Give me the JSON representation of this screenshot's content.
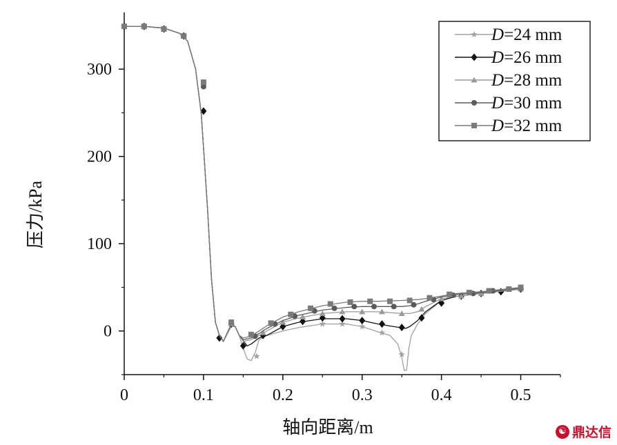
{
  "chart_data": {
    "type": "line",
    "xlabel": "轴向距离/m",
    "ylabel": "压力/kPa",
    "xlim": [
      0,
      0.55
    ],
    "ylim": [
      -50,
      365
    ],
    "x_ticks": [
      "0",
      "0.1",
      "0.2",
      "0.3",
      "0.4",
      "0.5"
    ],
    "x_tick_values": [
      0,
      0.1,
      0.2,
      0.3,
      0.4,
      0.5
    ],
    "y_ticks": [
      "0",
      "100",
      "200",
      "300"
    ],
    "y_tick_values": [
      0,
      100,
      200,
      300
    ],
    "legend_position": "top-right",
    "grid": false,
    "series": [
      {
        "name": "D=24 mm",
        "marker": "star",
        "color": "#a0a0a0",
        "curve": [
          [
            0,
            349
          ],
          [
            0.025,
            349
          ],
          [
            0.05,
            347
          ],
          [
            0.07,
            341
          ],
          [
            0.08,
            332
          ],
          [
            0.09,
            300
          ],
          [
            0.097,
            250
          ],
          [
            0.1,
            210
          ],
          [
            0.105,
            140
          ],
          [
            0.11,
            60
          ],
          [
            0.115,
            10
          ],
          [
            0.12,
            -5
          ],
          [
            0.125,
            -12
          ],
          [
            0.135,
            5
          ],
          [
            0.14,
            5
          ],
          [
            0.145,
            -5
          ],
          [
            0.15,
            -20
          ],
          [
            0.155,
            -32
          ],
          [
            0.16,
            -34
          ],
          [
            0.165,
            -25
          ],
          [
            0.17,
            -10
          ],
          [
            0.18,
            -5
          ],
          [
            0.2,
            0
          ],
          [
            0.22,
            4
          ],
          [
            0.25,
            8
          ],
          [
            0.28,
            8
          ],
          [
            0.3,
            5
          ],
          [
            0.32,
            -1
          ],
          [
            0.335,
            -5
          ],
          [
            0.345,
            -15
          ],
          [
            0.35,
            -30
          ],
          [
            0.353,
            -45
          ],
          [
            0.356,
            -45
          ],
          [
            0.359,
            -20
          ],
          [
            0.362,
            -5
          ],
          [
            0.37,
            8
          ],
          [
            0.38,
            20
          ],
          [
            0.4,
            35
          ],
          [
            0.42,
            40
          ],
          [
            0.45,
            43
          ],
          [
            0.5,
            48
          ]
        ],
        "points": [
          [
            0,
            349
          ],
          [
            0.025,
            349
          ],
          [
            0.05,
            346
          ],
          [
            0.075,
            338
          ],
          [
            0.1,
            283
          ],
          [
            0.167,
            -29
          ],
          [
            0.25,
            8
          ],
          [
            0.275,
            8
          ],
          [
            0.3,
            5
          ],
          [
            0.325,
            -2
          ],
          [
            0.35,
            -27
          ],
          [
            0.4,
            35
          ],
          [
            0.45,
            43
          ],
          [
            0.5,
            48
          ]
        ]
      },
      {
        "name": "D=26 mm",
        "marker": "diamond",
        "color": "#111111",
        "curve": [
          [
            0,
            349
          ],
          [
            0.025,
            349
          ],
          [
            0.05,
            347
          ],
          [
            0.07,
            341
          ],
          [
            0.08,
            332
          ],
          [
            0.09,
            300
          ],
          [
            0.097,
            250
          ],
          [
            0.1,
            210
          ],
          [
            0.105,
            140
          ],
          [
            0.11,
            60
          ],
          [
            0.115,
            10
          ],
          [
            0.12,
            -5
          ],
          [
            0.125,
            -12
          ],
          [
            0.135,
            8
          ],
          [
            0.14,
            5
          ],
          [
            0.145,
            -5
          ],
          [
            0.155,
            -17
          ],
          [
            0.16,
            -15
          ],
          [
            0.17,
            -8
          ],
          [
            0.18,
            -5
          ],
          [
            0.2,
            5
          ],
          [
            0.22,
            10
          ],
          [
            0.25,
            14
          ],
          [
            0.28,
            14
          ],
          [
            0.3,
            12
          ],
          [
            0.32,
            8
          ],
          [
            0.34,
            5
          ],
          [
            0.355,
            3
          ],
          [
            0.36,
            5
          ],
          [
            0.37,
            12
          ],
          [
            0.38,
            22
          ],
          [
            0.4,
            35
          ],
          [
            0.42,
            40
          ],
          [
            0.45,
            43
          ],
          [
            0.5,
            48
          ]
        ],
        "points": [
          [
            0,
            349
          ],
          [
            0.025,
            349
          ],
          [
            0.05,
            346
          ],
          [
            0.075,
            338
          ],
          [
            0.1,
            252
          ],
          [
            0.12,
            -8
          ],
          [
            0.135,
            8
          ],
          [
            0.15,
            -17
          ],
          [
            0.175,
            -5
          ],
          [
            0.2,
            5
          ],
          [
            0.225,
            11
          ],
          [
            0.25,
            15
          ],
          [
            0.275,
            14
          ],
          [
            0.3,
            12
          ],
          [
            0.325,
            8
          ],
          [
            0.35,
            4
          ],
          [
            0.375,
            15
          ],
          [
            0.4,
            32
          ],
          [
            0.425,
            40
          ],
          [
            0.45,
            43
          ],
          [
            0.475,
            45
          ],
          [
            0.5,
            48
          ]
        ]
      },
      {
        "name": "D=28 mm",
        "marker": "triangle",
        "color": "#9a9a9a",
        "curve": [
          [
            0,
            349
          ],
          [
            0.025,
            349
          ],
          [
            0.05,
            347
          ],
          [
            0.07,
            341
          ],
          [
            0.08,
            332
          ],
          [
            0.09,
            300
          ],
          [
            0.097,
            250
          ],
          [
            0.1,
            210
          ],
          [
            0.105,
            140
          ],
          [
            0.11,
            60
          ],
          [
            0.115,
            10
          ],
          [
            0.12,
            -5
          ],
          [
            0.125,
            -12
          ],
          [
            0.135,
            8
          ],
          [
            0.14,
            5
          ],
          [
            0.145,
            -5
          ],
          [
            0.15,
            -12
          ],
          [
            0.16,
            -10
          ],
          [
            0.17,
            -5
          ],
          [
            0.18,
            0
          ],
          [
            0.2,
            10
          ],
          [
            0.22,
            15
          ],
          [
            0.25,
            20
          ],
          [
            0.28,
            22
          ],
          [
            0.3,
            22
          ],
          [
            0.32,
            22
          ],
          [
            0.35,
            20
          ],
          [
            0.36,
            20
          ],
          [
            0.37,
            22
          ],
          [
            0.38,
            28
          ],
          [
            0.4,
            37
          ],
          [
            0.42,
            40
          ],
          [
            0.45,
            43
          ],
          [
            0.5,
            48
          ]
        ],
        "points": [
          [
            0,
            349
          ],
          [
            0.025,
            349
          ],
          [
            0.05,
            346
          ],
          [
            0.075,
            338
          ],
          [
            0.1,
            285
          ],
          [
            0.135,
            8
          ],
          [
            0.175,
            -2
          ],
          [
            0.2,
            10
          ],
          [
            0.225,
            16
          ],
          [
            0.25,
            20
          ],
          [
            0.275,
            22
          ],
          [
            0.3,
            22
          ],
          [
            0.325,
            22
          ],
          [
            0.35,
            20
          ],
          [
            0.375,
            25
          ],
          [
            0.4,
            37
          ],
          [
            0.425,
            40
          ],
          [
            0.45,
            43
          ],
          [
            0.5,
            48
          ]
        ]
      },
      {
        "name": "D=30 mm",
        "marker": "circle",
        "color": "#5a5a5a",
        "curve": [
          [
            0,
            349
          ],
          [
            0.025,
            349
          ],
          [
            0.05,
            347
          ],
          [
            0.07,
            341
          ],
          [
            0.08,
            332
          ],
          [
            0.09,
            300
          ],
          [
            0.097,
            250
          ],
          [
            0.1,
            210
          ],
          [
            0.105,
            140
          ],
          [
            0.11,
            60
          ],
          [
            0.115,
            10
          ],
          [
            0.12,
            -5
          ],
          [
            0.125,
            -12
          ],
          [
            0.135,
            8
          ],
          [
            0.14,
            5
          ],
          [
            0.145,
            -5
          ],
          [
            0.15,
            -10
          ],
          [
            0.16,
            -8
          ],
          [
            0.17,
            -3
          ],
          [
            0.18,
            3
          ],
          [
            0.2,
            12
          ],
          [
            0.22,
            18
          ],
          [
            0.25,
            24
          ],
          [
            0.28,
            27
          ],
          [
            0.3,
            28
          ],
          [
            0.32,
            28
          ],
          [
            0.35,
            28
          ],
          [
            0.36,
            29
          ],
          [
            0.37,
            31
          ],
          [
            0.38,
            34
          ],
          [
            0.4,
            39
          ],
          [
            0.42,
            42
          ],
          [
            0.45,
            44
          ],
          [
            0.5,
            49
          ]
        ],
        "points": [
          [
            0,
            349
          ],
          [
            0.025,
            349
          ],
          [
            0.05,
            346
          ],
          [
            0.075,
            338
          ],
          [
            0.1,
            280
          ],
          [
            0.165,
            -6
          ],
          [
            0.19,
            8
          ],
          [
            0.215,
            17
          ],
          [
            0.24,
            23
          ],
          [
            0.265,
            26
          ],
          [
            0.29,
            28
          ],
          [
            0.315,
            28
          ],
          [
            0.34,
            28
          ],
          [
            0.365,
            30
          ],
          [
            0.39,
            36
          ],
          [
            0.415,
            41
          ],
          [
            0.44,
            43
          ],
          [
            0.465,
            46
          ],
          [
            0.5,
            49
          ]
        ]
      },
      {
        "name": "D=32 mm",
        "marker": "square",
        "color": "#7a7a7a",
        "curve": [
          [
            0,
            349
          ],
          [
            0.025,
            349
          ],
          [
            0.05,
            347
          ],
          [
            0.07,
            341
          ],
          [
            0.08,
            332
          ],
          [
            0.09,
            300
          ],
          [
            0.097,
            250
          ],
          [
            0.1,
            210
          ],
          [
            0.105,
            140
          ],
          [
            0.11,
            60
          ],
          [
            0.115,
            10
          ],
          [
            0.12,
            -5
          ],
          [
            0.125,
            -12
          ],
          [
            0.135,
            8
          ],
          [
            0.14,
            5
          ],
          [
            0.145,
            -5
          ],
          [
            0.15,
            -8
          ],
          [
            0.16,
            -6
          ],
          [
            0.17,
            0
          ],
          [
            0.18,
            6
          ],
          [
            0.2,
            16
          ],
          [
            0.22,
            22
          ],
          [
            0.25,
            29
          ],
          [
            0.28,
            33
          ],
          [
            0.3,
            34
          ],
          [
            0.32,
            34
          ],
          [
            0.35,
            35
          ],
          [
            0.37,
            36
          ],
          [
            0.38,
            37
          ],
          [
            0.4,
            40
          ],
          [
            0.42,
            43
          ],
          [
            0.45,
            45
          ],
          [
            0.5,
            50
          ]
        ],
        "points": [
          [
            0,
            349
          ],
          [
            0.025,
            349
          ],
          [
            0.05,
            346
          ],
          [
            0.075,
            338
          ],
          [
            0.1,
            285
          ],
          [
            0.135,
            10
          ],
          [
            0.16,
            -4
          ],
          [
            0.185,
            9
          ],
          [
            0.21,
            19
          ],
          [
            0.235,
            26
          ],
          [
            0.26,
            31
          ],
          [
            0.285,
            33
          ],
          [
            0.31,
            34
          ],
          [
            0.335,
            34
          ],
          [
            0.36,
            35
          ],
          [
            0.385,
            38
          ],
          [
            0.41,
            42
          ],
          [
            0.435,
            44
          ],
          [
            0.46,
            46
          ],
          [
            0.485,
            48
          ],
          [
            0.5,
            50
          ]
        ]
      }
    ]
  },
  "watermark": {
    "icon": "鼎-logo-icon",
    "text": "鼎达信",
    "color": "#c8102e"
  }
}
